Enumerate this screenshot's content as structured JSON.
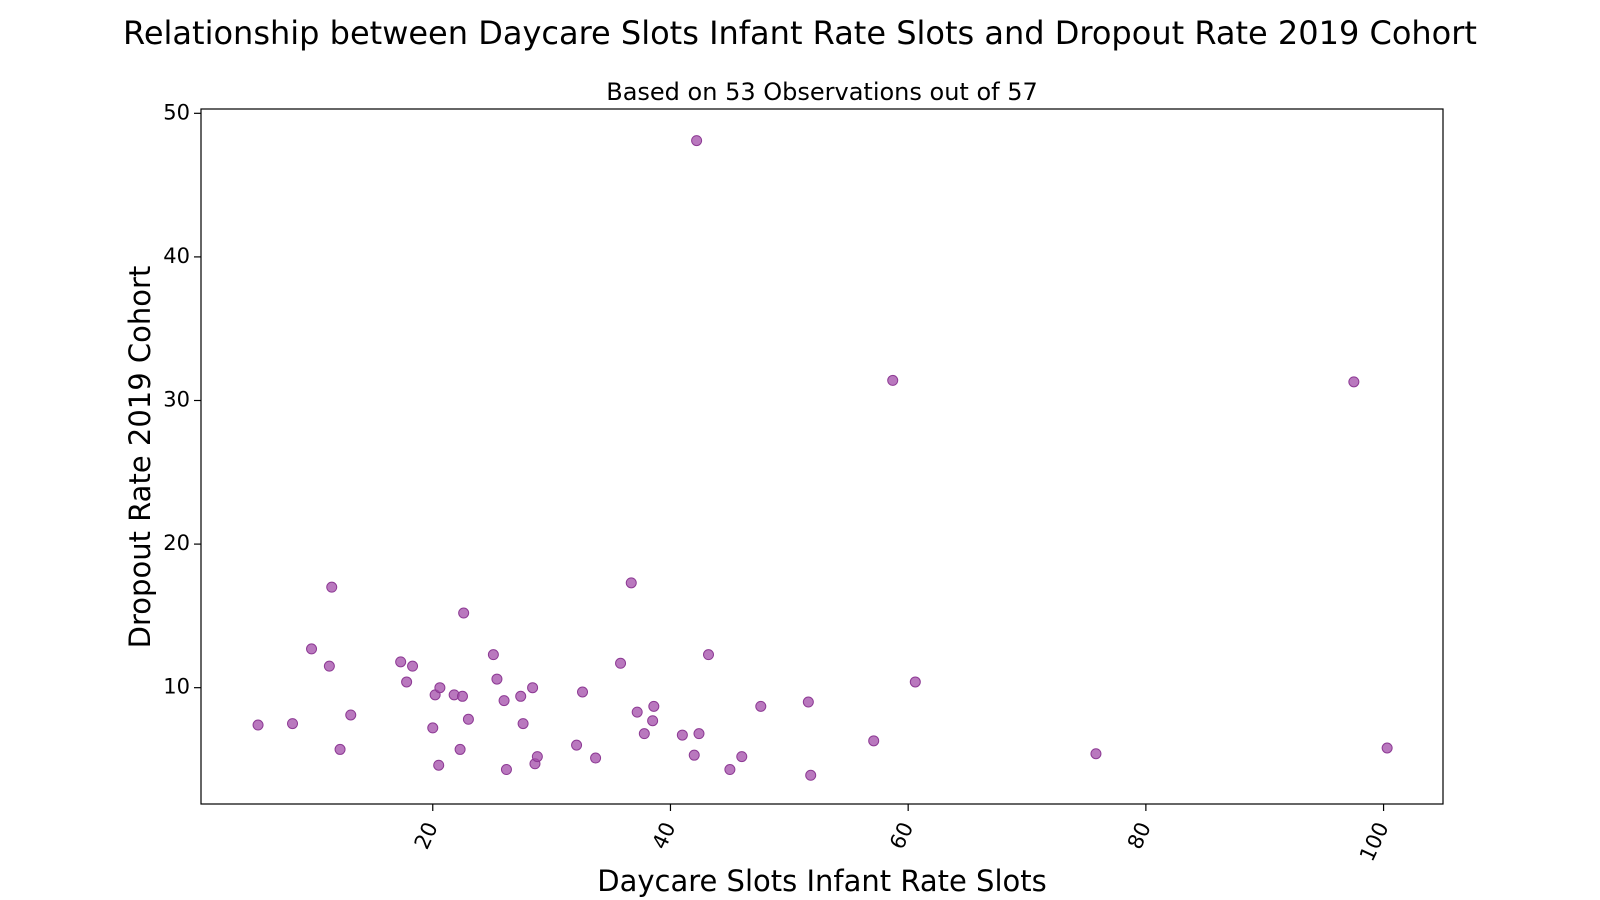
{
  "chart_data": {
    "type": "scatter",
    "title": "Relationship between Daycare Slots Infant Rate Slots and Dropout Rate 2019 Cohort",
    "subtitle": "Based on 53 Observations out of 57",
    "xlabel": "Daycare Slots Infant Rate Slots",
    "ylabel": "Dropout Rate 2019 Cohort",
    "xlim": [
      0.5,
      105
    ],
    "ylim": [
      1.9,
      50.3
    ],
    "xticks": [
      20,
      40,
      60,
      80,
      100
    ],
    "yticks": [
      10,
      20,
      30,
      40,
      50
    ],
    "grid": false,
    "color": "#a14ba8",
    "points": [
      [
        5.3,
        7.4
      ],
      [
        8.2,
        7.5
      ],
      [
        9.8,
        12.7
      ],
      [
        11.3,
        11.5
      ],
      [
        11.5,
        17.0
      ],
      [
        12.2,
        5.7
      ],
      [
        13.1,
        8.1
      ],
      [
        17.3,
        11.8
      ],
      [
        17.8,
        10.4
      ],
      [
        18.3,
        11.5
      ],
      [
        20.0,
        7.2
      ],
      [
        20.2,
        9.5
      ],
      [
        20.5,
        4.6
      ],
      [
        20.6,
        10.0
      ],
      [
        21.8,
        9.5
      ],
      [
        22.3,
        5.7
      ],
      [
        22.5,
        9.4
      ],
      [
        22.6,
        15.2
      ],
      [
        23.0,
        7.8
      ],
      [
        25.1,
        12.3
      ],
      [
        25.4,
        10.6
      ],
      [
        26.0,
        9.1
      ],
      [
        26.2,
        4.3
      ],
      [
        27.4,
        9.4
      ],
      [
        27.6,
        7.5
      ],
      [
        28.4,
        10.0
      ],
      [
        28.6,
        4.7
      ],
      [
        28.8,
        5.2
      ],
      [
        32.1,
        6.0
      ],
      [
        32.6,
        9.7
      ],
      [
        33.7,
        5.1
      ],
      [
        35.8,
        11.7
      ],
      [
        36.7,
        17.3
      ],
      [
        37.2,
        8.3
      ],
      [
        37.8,
        6.8
      ],
      [
        38.5,
        7.7
      ],
      [
        38.6,
        8.7
      ],
      [
        41.0,
        6.7
      ],
      [
        42.0,
        5.3
      ],
      [
        42.2,
        48.1
      ],
      [
        42.4,
        6.8
      ],
      [
        43.2,
        12.3
      ],
      [
        45.0,
        4.3
      ],
      [
        46.0,
        5.2
      ],
      [
        47.6,
        8.7
      ],
      [
        51.6,
        9.0
      ],
      [
        51.8,
        3.9
      ],
      [
        57.1,
        6.3
      ],
      [
        58.7,
        31.4
      ],
      [
        60.6,
        10.4
      ],
      [
        75.8,
        5.4
      ],
      [
        97.5,
        31.3
      ],
      [
        100.3,
        5.8
      ]
    ]
  }
}
